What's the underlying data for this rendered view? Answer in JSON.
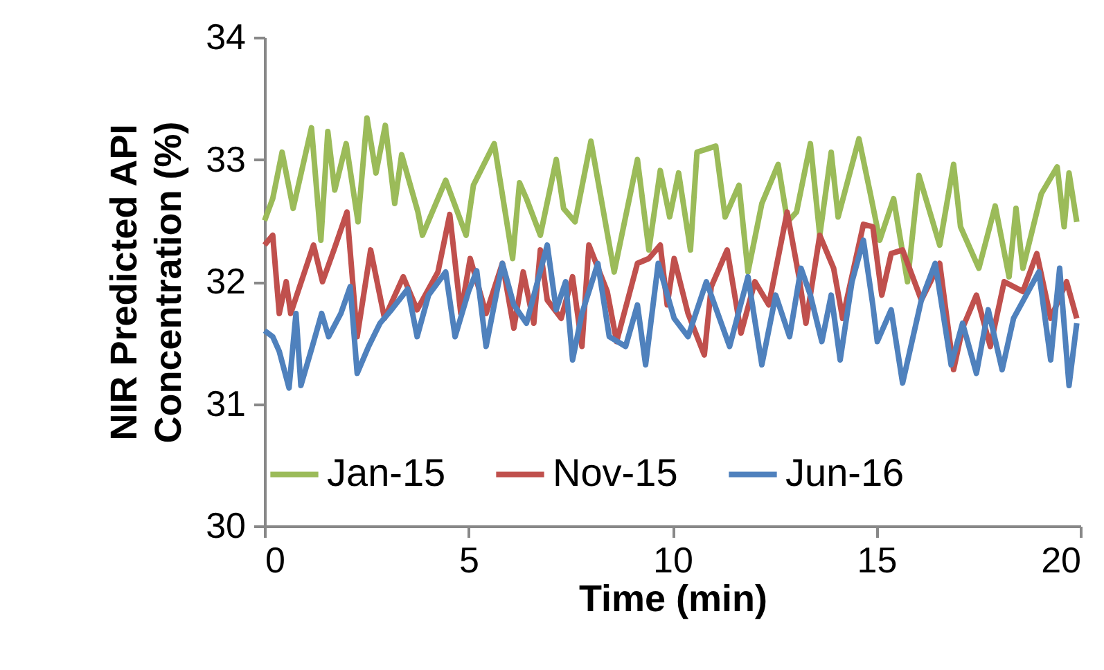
{
  "chart_data": {
    "type": "line",
    "xlabel": "Time (min)",
    "ylabel": "NIR Predicted API Concentration (%)",
    "xlim": [
      0,
      20
    ],
    "xticks": [
      0,
      5,
      10,
      15,
      20
    ],
    "ylim": [
      30,
      34
    ],
    "yticks": [
      30,
      31,
      32,
      33,
      34
    ],
    "grid": false,
    "legend": "bottom",
    "marker": "none",
    "line_style": "solid",
    "series": [
      {
        "name": "Jan-15",
        "color": "#9bbb59",
        "x": [
          0,
          0.2,
          0.43,
          0.7,
          1.15,
          1.38,
          1.55,
          1.72,
          2.0,
          2.29,
          2.51,
          2.73,
          2.96,
          3.19,
          3.36,
          3.76,
          3.87,
          4.44,
          4.94,
          5.12,
          5.63,
          6.08,
          6.25,
          6.42,
          6.76,
          7.15,
          7.33,
          7.61,
          8.0,
          8.57,
          9.14,
          9.42,
          9.7,
          9.93,
          10.15,
          10.44,
          10.6,
          11.06,
          11.29,
          11.63,
          11.85,
          12.19,
          12.59,
          12.82,
          13.04,
          13.38,
          13.61,
          13.89,
          14.06,
          14.57,
          14.85,
          15.08,
          15.42,
          15.76,
          16.04,
          16.55,
          16.89,
          17.06,
          17.51,
          17.91,
          18.25,
          18.42,
          18.59,
          19.04,
          19.43,
          19.6,
          19.72,
          19.91
        ],
        "values": [
          32.5,
          32.68,
          33.06,
          32.6,
          33.26,
          32.34,
          33.23,
          32.75,
          33.13,
          32.49,
          33.34,
          32.89,
          33.28,
          32.64,
          33.04,
          32.57,
          32.38,
          32.83,
          32.38,
          32.79,
          33.13,
          32.19,
          32.81,
          32.68,
          32.38,
          33.0,
          32.6,
          32.49,
          33.15,
          32.08,
          33.0,
          32.26,
          32.91,
          32.53,
          32.89,
          32.26,
          33.06,
          33.11,
          32.53,
          32.79,
          32.08,
          32.64,
          32.96,
          32.49,
          32.57,
          33.13,
          32.38,
          33.06,
          32.53,
          33.17,
          32.72,
          32.34,
          32.68,
          32.0,
          32.87,
          32.3,
          32.96,
          32.45,
          32.11,
          32.62,
          32.04,
          32.6,
          32.11,
          32.72,
          32.94,
          32.45,
          32.89,
          32.49
        ]
      },
      {
        "name": "Nov-15",
        "color": "#c0504d",
        "x": [
          0,
          0.2,
          0.36,
          0.53,
          0.64,
          1.2,
          1.42,
          1.7,
          2.02,
          2.27,
          2.6,
          2.94,
          3.4,
          3.74,
          4.25,
          4.54,
          4.81,
          5.04,
          5.43,
          5.83,
          6.11,
          6.34,
          6.6,
          6.76,
          6.93,
          7.27,
          7.55,
          7.78,
          7.95,
          8.4,
          8.63,
          9.14,
          9.42,
          9.7,
          9.87,
          10.04,
          10.38,
          10.78,
          10.95,
          11.34,
          11.68,
          12.02,
          12.36,
          12.81,
          13.1,
          13.27,
          13.61,
          13.95,
          14.17,
          14.68,
          14.91,
          15.13,
          15.36,
          15.64,
          16.1,
          16.55,
          16.89,
          17.11,
          17.45,
          17.79,
          18.13,
          18.59,
          18.93,
          19.27,
          19.66,
          19.91
        ],
        "values": [
          32.3,
          32.38,
          31.74,
          32.0,
          31.74,
          32.3,
          32.0,
          32.26,
          32.57,
          31.55,
          32.26,
          31.7,
          32.04,
          31.77,
          32.08,
          32.55,
          31.74,
          32.19,
          31.74,
          32.15,
          31.62,
          32.08,
          31.66,
          32.26,
          31.85,
          31.7,
          32.04,
          31.47,
          32.3,
          31.92,
          31.51,
          32.15,
          32.19,
          32.3,
          31.81,
          32.19,
          31.74,
          31.4,
          31.96,
          32.26,
          31.58,
          32.0,
          31.81,
          32.57,
          32.04,
          31.66,
          32.38,
          32.11,
          31.7,
          32.47,
          32.45,
          31.89,
          32.23,
          32.26,
          31.85,
          32.15,
          31.28,
          31.62,
          31.89,
          31.47,
          32.0,
          31.92,
          32.23,
          31.7,
          32.0,
          31.7
        ]
      },
      {
        "name": "Jun-16",
        "color": "#4f81bd",
        "x": [
          0,
          0.2,
          0.36,
          0.6,
          0.77,
          0.89,
          1.17,
          1.4,
          1.57,
          1.87,
          2.1,
          2.27,
          2.55,
          2.83,
          3.11,
          3.51,
          3.74,
          4.02,
          4.44,
          4.67,
          5.0,
          5.2,
          5.43,
          5.83,
          6.11,
          6.42,
          6.93,
          7.15,
          7.38,
          7.55,
          7.78,
          8.17,
          8.45,
          8.85,
          9.14,
          9.34,
          9.65,
          10.04,
          10.38,
          10.83,
          11.4,
          11.85,
          12.19,
          12.53,
          12.87,
          13.15,
          13.38,
          13.66,
          13.89,
          14.11,
          14.4,
          14.68,
          14.91,
          15.02,
          15.36,
          15.64,
          16.1,
          16.44,
          16.83,
          17.11,
          17.45,
          17.74,
          18.08,
          18.36,
          18.98,
          19.27,
          19.49,
          19.72,
          19.91
        ],
        "values": [
          31.6,
          31.55,
          31.43,
          31.13,
          31.74,
          31.15,
          31.47,
          31.74,
          31.55,
          31.74,
          31.96,
          31.25,
          31.47,
          31.66,
          31.77,
          31.94,
          31.55,
          31.89,
          32.08,
          31.55,
          31.92,
          32.09,
          31.47,
          32.15,
          31.81,
          31.66,
          32.3,
          31.77,
          32.0,
          31.36,
          31.74,
          32.15,
          31.55,
          31.47,
          31.81,
          31.32,
          32.15,
          31.7,
          31.55,
          32.0,
          31.47,
          32.04,
          31.32,
          31.89,
          31.55,
          32.11,
          31.89,
          31.51,
          31.89,
          31.36,
          32.0,
          32.34,
          31.81,
          31.51,
          31.77,
          31.17,
          31.85,
          32.15,
          31.32,
          31.66,
          31.25,
          31.77,
          31.28,
          31.7,
          32.08,
          31.36,
          32.11,
          31.15,
          31.66
        ]
      }
    ]
  }
}
